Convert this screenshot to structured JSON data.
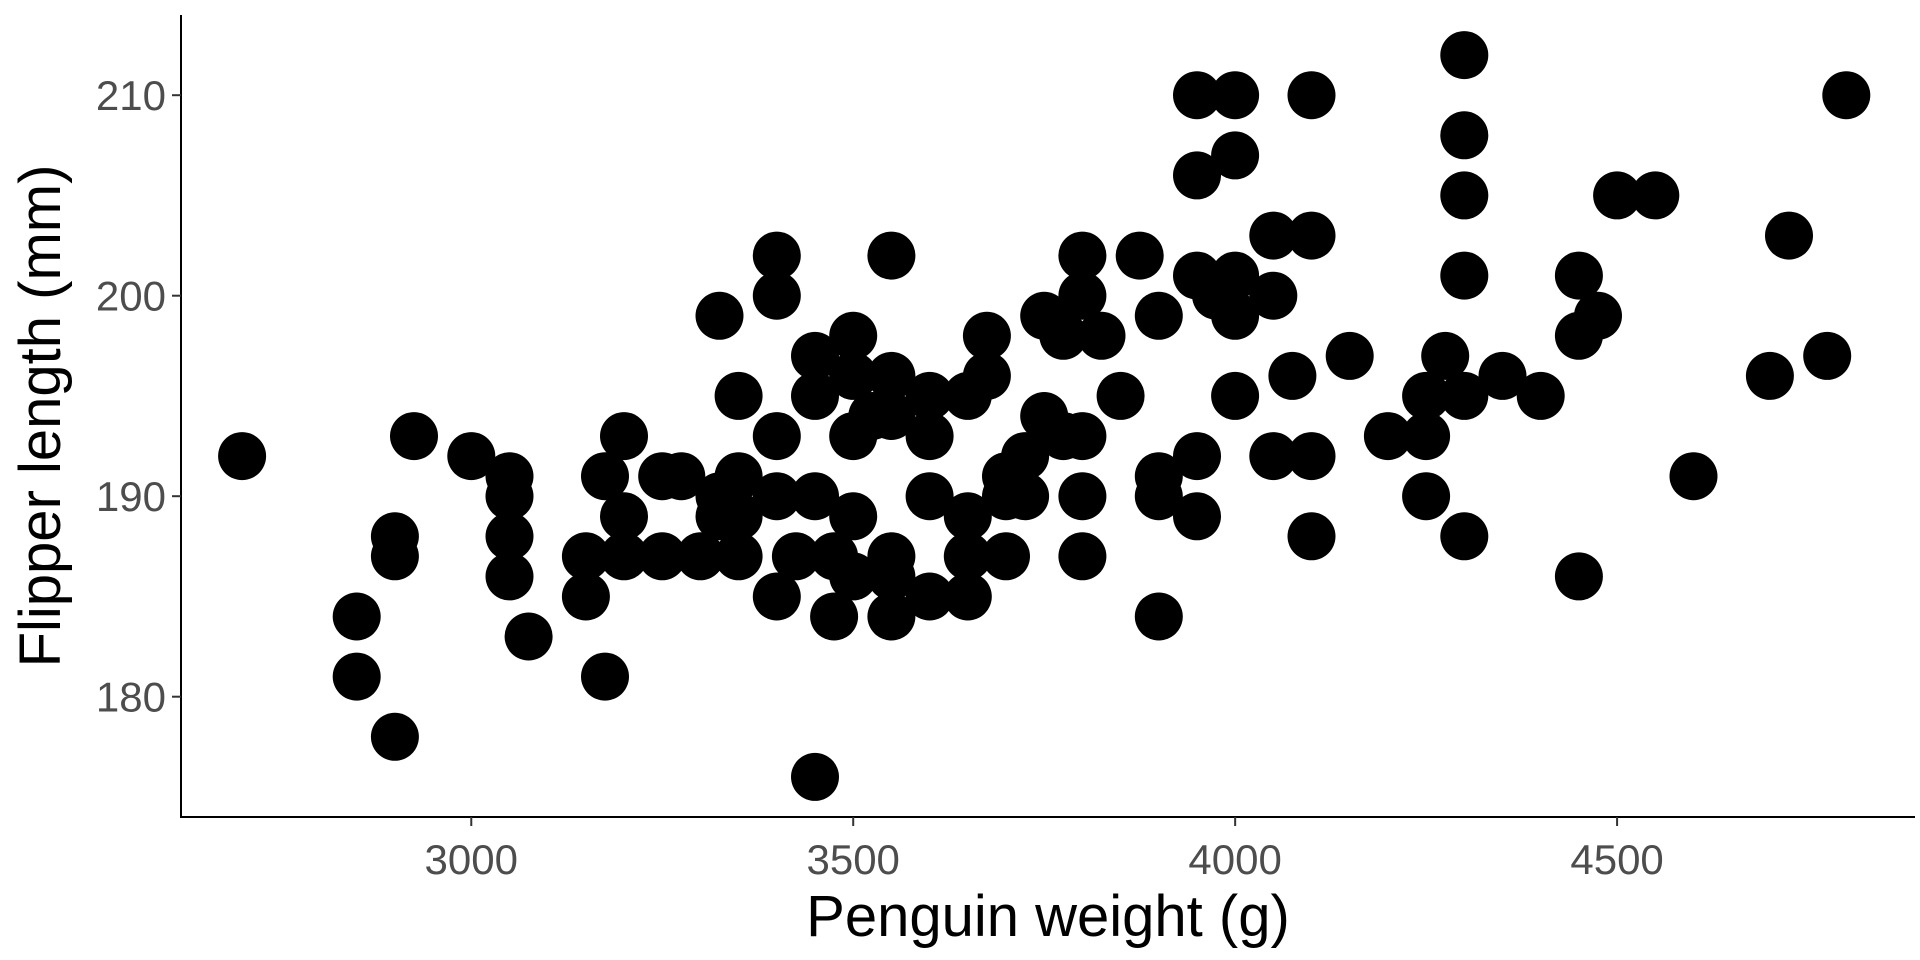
{
  "chart_data": {
    "type": "scatter",
    "title": "",
    "xlabel": "Penguin weight (g)",
    "ylabel": "Flipper length (mm)",
    "xlim": [
      2620,
      4890
    ],
    "ylim": [
      174,
      214
    ],
    "x_ticks": [
      3000,
      3500,
      4000,
      4500
    ],
    "y_ticks": [
      180,
      190,
      200,
      210
    ],
    "x_tick_labels": [
      "3000",
      "3500",
      "4000",
      "4500"
    ],
    "y_tick_labels": [
      "180",
      "190",
      "200",
      "210"
    ],
    "grid": false,
    "legend": "none",
    "point_color": "#000000",
    "points": [
      [
        2700,
        192
      ],
      [
        2850,
        184
      ],
      [
        2850,
        181
      ],
      [
        2900,
        188
      ],
      [
        2900,
        187
      ],
      [
        2900,
        178
      ],
      [
        2925,
        193
      ],
      [
        3000,
        192
      ],
      [
        3050,
        191
      ],
      [
        3050,
        190
      ],
      [
        3050,
        188
      ],
      [
        3050,
        186
      ],
      [
        3075,
        183
      ],
      [
        3150,
        187
      ],
      [
        3150,
        185
      ],
      [
        3175,
        191
      ],
      [
        3175,
        181
      ],
      [
        3200,
        193
      ],
      [
        3200,
        189
      ],
      [
        3200,
        187
      ],
      [
        3250,
        191
      ],
      [
        3250,
        187
      ],
      [
        3275,
        191
      ],
      [
        3300,
        187
      ],
      [
        3325,
        199
      ],
      [
        3325,
        190
      ],
      [
        3325,
        189
      ],
      [
        3350,
        195
      ],
      [
        3350,
        191
      ],
      [
        3350,
        189
      ],
      [
        3350,
        187
      ],
      [
        3400,
        202
      ],
      [
        3400,
        200
      ],
      [
        3400,
        193
      ],
      [
        3400,
        190
      ],
      [
        3400,
        185
      ],
      [
        3425,
        187
      ],
      [
        3450,
        197
      ],
      [
        3450,
        195
      ],
      [
        3450,
        190
      ],
      [
        3450,
        176
      ],
      [
        3475,
        187
      ],
      [
        3475,
        184
      ],
      [
        3500,
        198
      ],
      [
        3500,
        196
      ],
      [
        3500,
        193
      ],
      [
        3500,
        189
      ],
      [
        3500,
        186
      ],
      [
        3525,
        194
      ],
      [
        3550,
        202
      ],
      [
        3550,
        196
      ],
      [
        3550,
        194
      ],
      [
        3550,
        187
      ],
      [
        3550,
        186
      ],
      [
        3550,
        184
      ],
      [
        3600,
        195
      ],
      [
        3600,
        193
      ],
      [
        3600,
        190
      ],
      [
        3600,
        185
      ],
      [
        3650,
        195
      ],
      [
        3650,
        189
      ],
      [
        3650,
        187
      ],
      [
        3650,
        185
      ],
      [
        3675,
        198
      ],
      [
        3675,
        196
      ],
      [
        3700,
        191
      ],
      [
        3700,
        190
      ],
      [
        3700,
        187
      ],
      [
        3725,
        192
      ],
      [
        3725,
        190
      ],
      [
        3750,
        199
      ],
      [
        3750,
        194
      ],
      [
        3775,
        198
      ],
      [
        3775,
        193
      ],
      [
        3800,
        202
      ],
      [
        3800,
        200
      ],
      [
        3800,
        193
      ],
      [
        3800,
        190
      ],
      [
        3800,
        187
      ],
      [
        3825,
        198
      ],
      [
        3850,
        195
      ],
      [
        3875,
        202
      ],
      [
        3900,
        199
      ],
      [
        3900,
        191
      ],
      [
        3900,
        190
      ],
      [
        3900,
        184
      ],
      [
        3950,
        210
      ],
      [
        3950,
        206
      ],
      [
        3950,
        201
      ],
      [
        3950,
        192
      ],
      [
        3950,
        189
      ],
      [
        3975,
        200
      ],
      [
        4000,
        210
      ],
      [
        4000,
        207
      ],
      [
        4000,
        201
      ],
      [
        4000,
        199
      ],
      [
        4000,
        195
      ],
      [
        4050,
        203
      ],
      [
        4050,
        200
      ],
      [
        4050,
        192
      ],
      [
        4075,
        196
      ],
      [
        4100,
        210
      ],
      [
        4100,
        203
      ],
      [
        4100,
        192
      ],
      [
        4100,
        188
      ],
      [
        4150,
        197
      ],
      [
        4200,
        193
      ],
      [
        4250,
        195
      ],
      [
        4250,
        193
      ],
      [
        4250,
        190
      ],
      [
        4275,
        197
      ],
      [
        4300,
        212
      ],
      [
        4300,
        208
      ],
      [
        4300,
        205
      ],
      [
        4300,
        201
      ],
      [
        4300,
        195
      ],
      [
        4300,
        188
      ],
      [
        4350,
        196
      ],
      [
        4400,
        195
      ],
      [
        4450,
        201
      ],
      [
        4450,
        198
      ],
      [
        4450,
        186
      ],
      [
        4475,
        199
      ],
      [
        4500,
        205
      ],
      [
        4550,
        205
      ],
      [
        4600,
        191
      ],
      [
        4700,
        196
      ],
      [
        4725,
        203
      ],
      [
        4775,
        197
      ],
      [
        4800,
        210
      ]
    ]
  }
}
